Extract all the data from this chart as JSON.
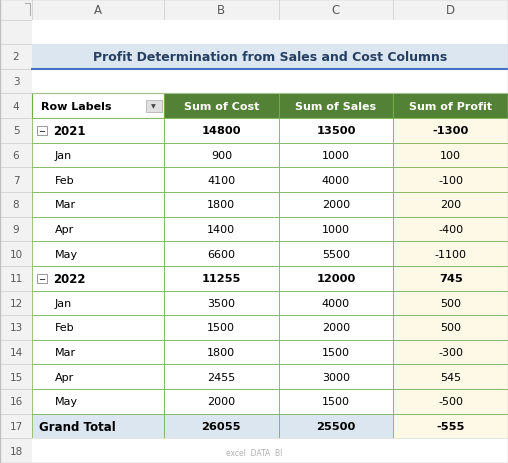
{
  "title": "Profit Determination from Sales and Cost Columns",
  "title_color": "#243f60",
  "title_bg": "#ffffff",
  "header_labels": [
    "Row Labels",
    "Sum of Cost",
    "Sum of Sales",
    "Sum of Profit"
  ],
  "header_bg": "#538135",
  "header_fg": "#ffffff",
  "rows": [
    {
      "label": "2021",
      "cost": "14800",
      "sales": "13500",
      "profit": "-1300",
      "bold": true,
      "indent": false,
      "year": true,
      "row_bg": "#ffffff",
      "profit_bg": "#fef9e7"
    },
    {
      "label": "Jan",
      "cost": "900",
      "sales": "1000",
      "profit": "100",
      "bold": false,
      "indent": true,
      "year": false,
      "row_bg": "#ffffff",
      "profit_bg": "#fef9e7"
    },
    {
      "label": "Feb",
      "cost": "4100",
      "sales": "4000",
      "profit": "-100",
      "bold": false,
      "indent": true,
      "year": false,
      "row_bg": "#ffffff",
      "profit_bg": "#fef9e7"
    },
    {
      "label": "Mar",
      "cost": "1800",
      "sales": "2000",
      "profit": "200",
      "bold": false,
      "indent": true,
      "year": false,
      "row_bg": "#ffffff",
      "profit_bg": "#fef9e7"
    },
    {
      "label": "Apr",
      "cost": "1400",
      "sales": "1000",
      "profit": "-400",
      "bold": false,
      "indent": true,
      "year": false,
      "row_bg": "#ffffff",
      "profit_bg": "#fef9e7"
    },
    {
      "label": "May",
      "cost": "6600",
      "sales": "5500",
      "profit": "-1100",
      "bold": false,
      "indent": true,
      "year": false,
      "row_bg": "#ffffff",
      "profit_bg": "#fef9e7"
    },
    {
      "label": "2022",
      "cost": "11255",
      "sales": "12000",
      "profit": "745",
      "bold": true,
      "indent": false,
      "year": true,
      "row_bg": "#ffffff",
      "profit_bg": "#fef9e7"
    },
    {
      "label": "Jan",
      "cost": "3500",
      "sales": "4000",
      "profit": "500",
      "bold": false,
      "indent": true,
      "year": false,
      "row_bg": "#ffffff",
      "profit_bg": "#fef9e7"
    },
    {
      "label": "Feb",
      "cost": "1500",
      "sales": "2000",
      "profit": "500",
      "bold": false,
      "indent": true,
      "year": false,
      "row_bg": "#ffffff",
      "profit_bg": "#fef9e7"
    },
    {
      "label": "Mar",
      "cost": "1800",
      "sales": "1500",
      "profit": "-300",
      "bold": false,
      "indent": true,
      "year": false,
      "row_bg": "#ffffff",
      "profit_bg": "#fef9e7"
    },
    {
      "label": "Apr",
      "cost": "2455",
      "sales": "3000",
      "profit": "545",
      "bold": false,
      "indent": true,
      "year": false,
      "row_bg": "#ffffff",
      "profit_bg": "#fef9e7"
    },
    {
      "label": "May",
      "cost": "2000",
      "sales": "1500",
      "profit": "-500",
      "bold": false,
      "indent": true,
      "year": false,
      "row_bg": "#ffffff",
      "profit_bg": "#fef9e7"
    },
    {
      "label": "Grand Total",
      "cost": "26055",
      "sales": "25500",
      "profit": "-555",
      "bold": true,
      "indent": false,
      "year": false,
      "row_bg": "#dce6f1",
      "profit_bg": "#fef9e7"
    }
  ],
  "grid_color": "#70ad47",
  "cell_border_color": "#c6efce",
  "excel_header_bg": "#f2f2f2",
  "excel_header_border": "#d0d0d0",
  "excel_header_fg": "#595959",
  "watermark": "excel  DATA  BI",
  "row_numbers": [
    "",
    "2",
    "3",
    "4",
    "5",
    "6",
    "7",
    "8",
    "9",
    "10",
    "11",
    "12",
    "13",
    "14",
    "15",
    "16",
    "17",
    "18"
  ],
  "col_letters": [
    "A",
    "B",
    "C",
    "D"
  ],
  "fig_bg": "#ffffff"
}
